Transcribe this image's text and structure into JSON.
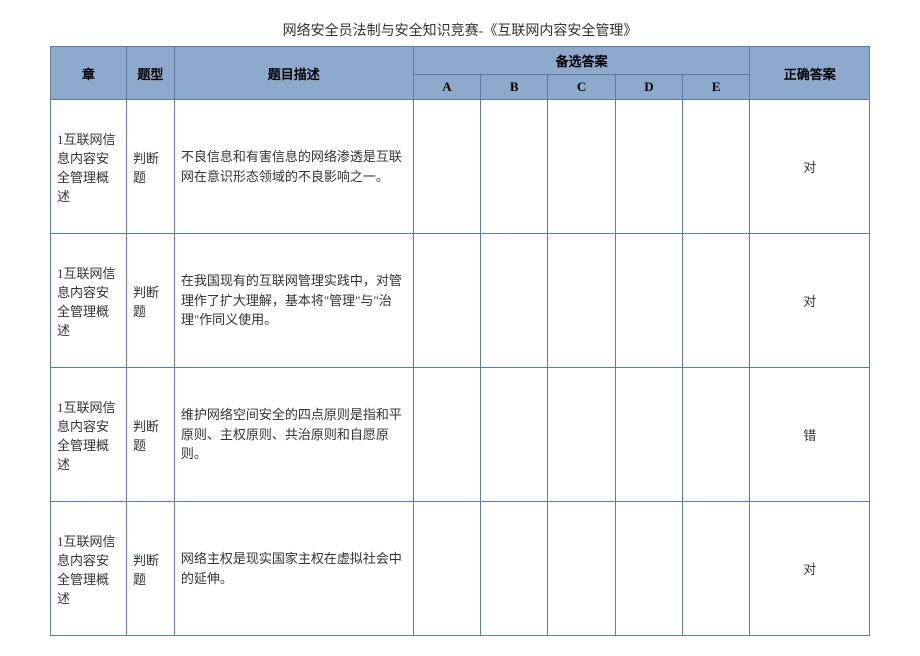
{
  "title": "网络安全员法制与安全知识竞赛-《互联网内容安全管理》",
  "headers": {
    "chapter": "章",
    "type": "题型",
    "desc": "题目描述",
    "options_group": "备选答案",
    "correct": "正确答案",
    "opts": [
      "A",
      "B",
      "C",
      "D",
      "E"
    ]
  },
  "rows": [
    {
      "chapter": "1互联网信息内容安全管理概述",
      "type": "判断题",
      "desc": "不良信息和有害信息的网络渗透是互联网在意识形态领域的不良影响之一。",
      "opts": [
        "",
        "",
        "",
        "",
        ""
      ],
      "correct": "对"
    },
    {
      "chapter": "1互联网信息内容安全管理概述",
      "type": "判断题",
      "desc": "在我国现有的互联网管理实践中，对管理作了扩大理解，基本将\"管理\"与\"治理\"作同义使用。",
      "opts": [
        "",
        "",
        "",
        "",
        ""
      ],
      "correct": "对"
    },
    {
      "chapter": "1互联网信息内容安全管理概述",
      "type": "判断题",
      "desc": "维护网络空间安全的四点原则是指和平原则、主权原则、共治原则和自愿原则。",
      "opts": [
        "",
        "",
        "",
        "",
        ""
      ],
      "correct": "错"
    },
    {
      "chapter": "1互联网信息内容安全管理概述",
      "type": "判断题",
      "desc": "网络主权是现实国家主权在虚拟社会中的延伸。",
      "opts": [
        "",
        "",
        "",
        "",
        ""
      ],
      "correct": "对"
    }
  ],
  "colors": {
    "header_bg": "#8da9cc",
    "border": "#5b7ca3",
    "body_bg": "#ffffff"
  }
}
